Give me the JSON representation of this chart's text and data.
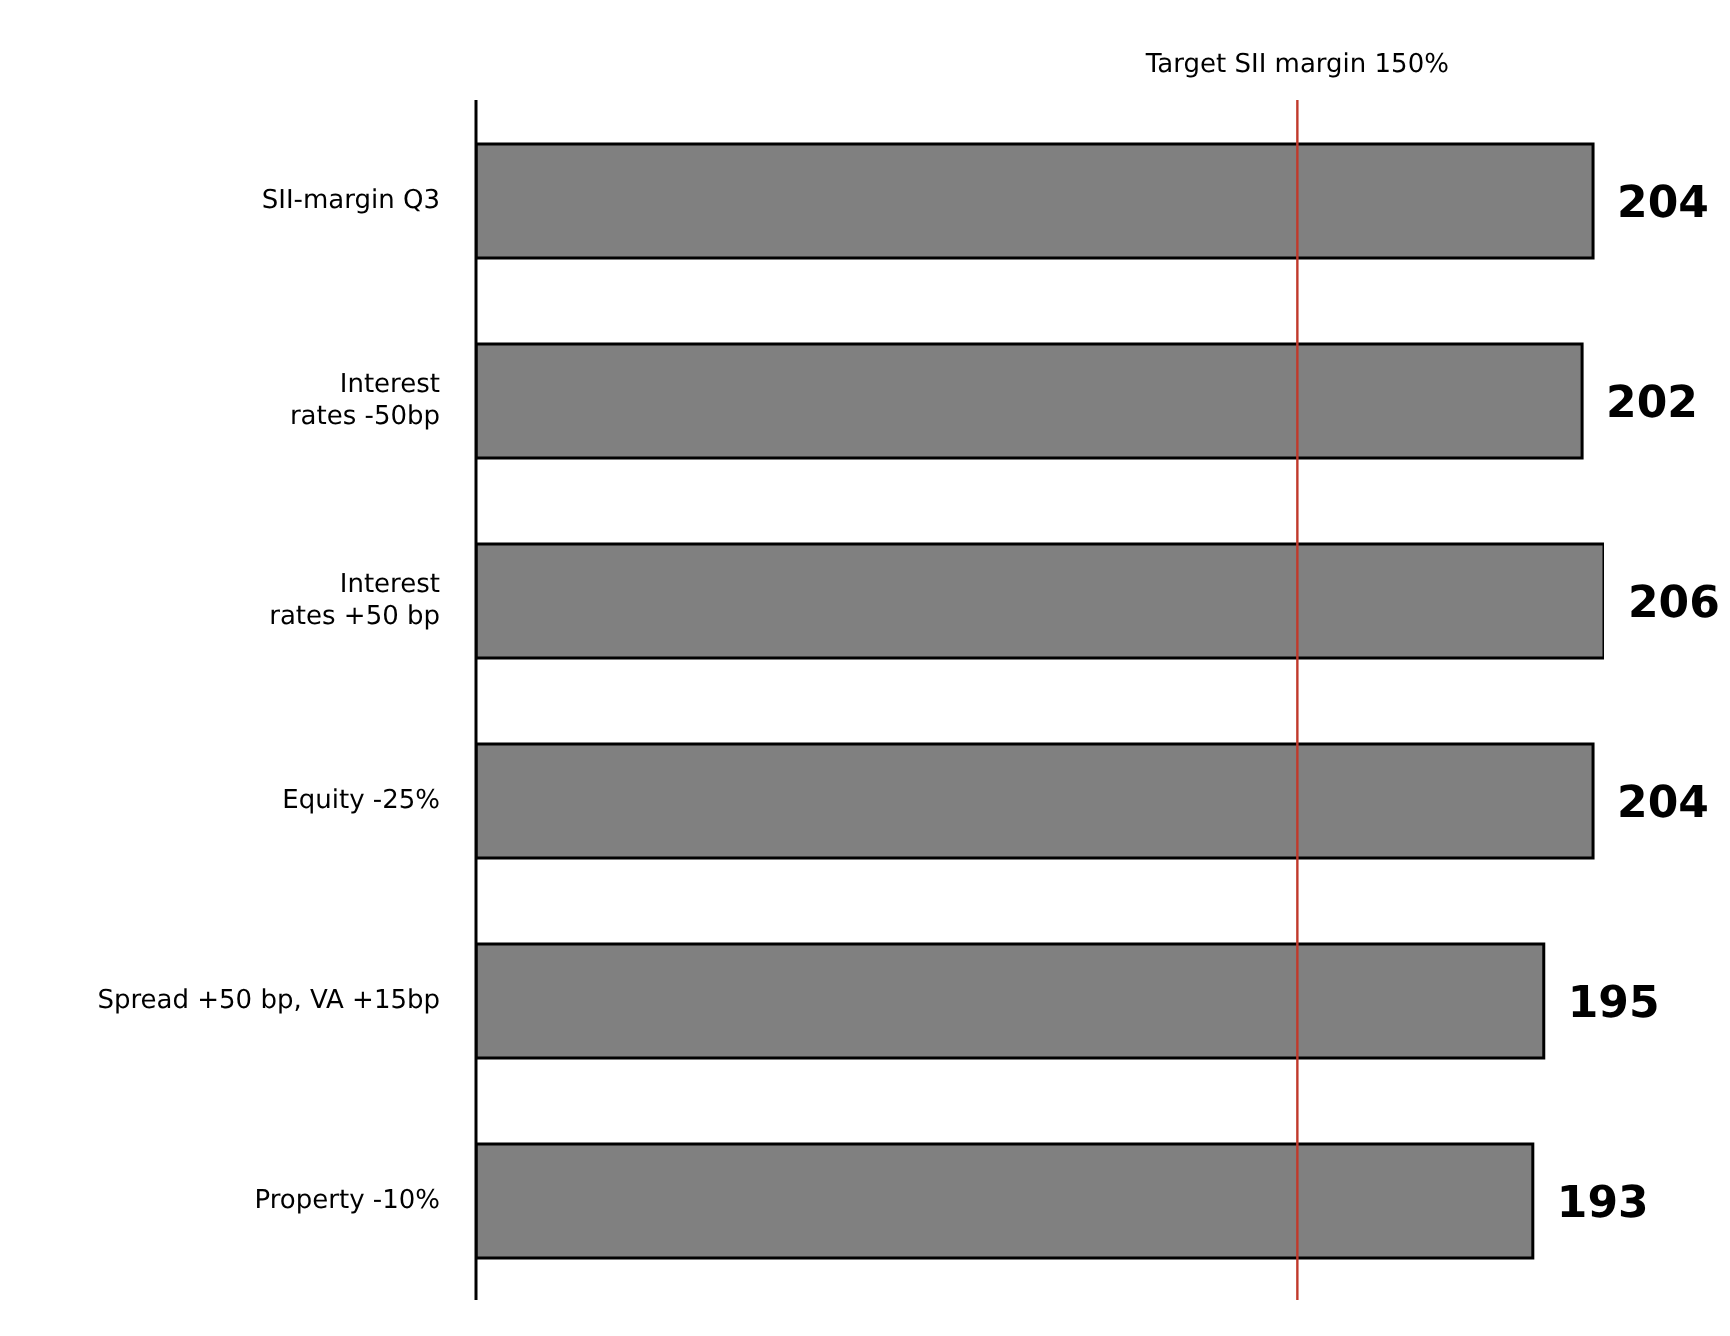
{
  "chart_data": {
    "type": "bar",
    "orientation": "horizontal",
    "categories": [
      "SII-margin Q3",
      "Interest\nrates -50bp",
      "Interest\nrates +50 bp",
      "Equity -25%",
      "Spread +50 bp, VA +15bp",
      "Property -10%"
    ],
    "values": [
      204,
      202,
      206,
      204,
      195,
      193
    ],
    "color": "#808080",
    "data_labels": true,
    "ref_lines": [
      {
        "axis": "x",
        "value": 150,
        "label": "Target SII margin 150%",
        "color": "#c0392b"
      }
    ]
  }
}
